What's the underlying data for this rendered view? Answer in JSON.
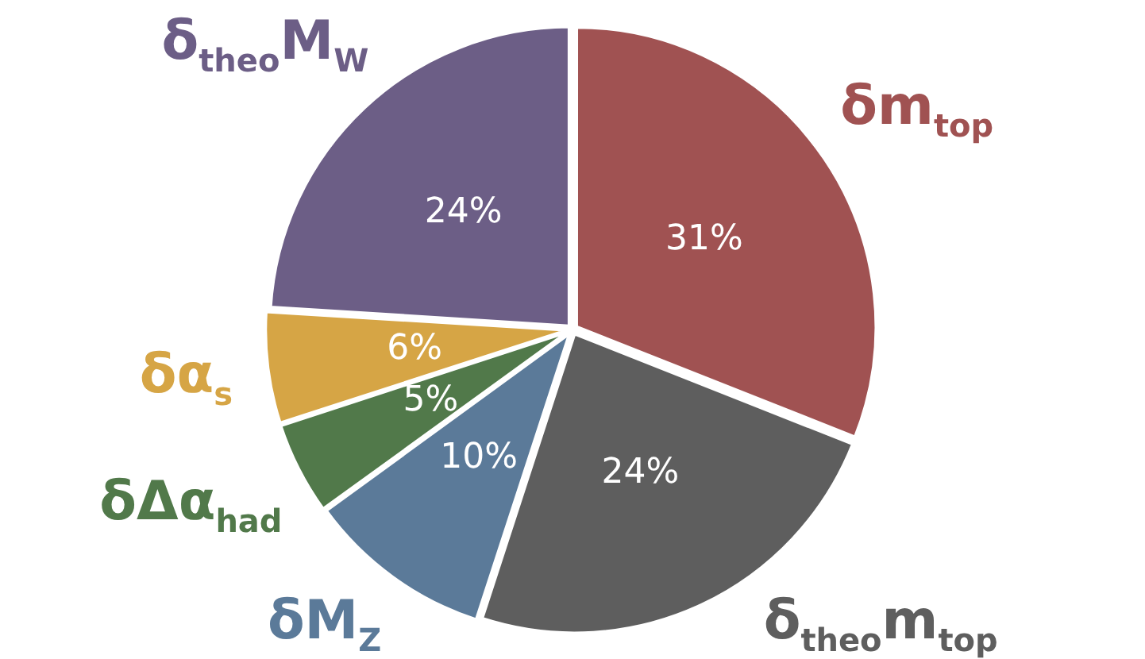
{
  "chart_data": {
    "type": "pie",
    "categories": [
      "δm$_{top}$",
      "δ$_{theo}$m$_{top}$",
      "δM$_{Z}$",
      "δΔα$_{had}$",
      "δα$_{s}$",
      "δ$_{theo}$M$_{W}$"
    ],
    "values": [
      31,
      24,
      10,
      5,
      6,
      24
    ],
    "colors": [
      "#a05252",
      "#5e5e5e",
      "#5b7a99",
      "#51794a",
      "#d6a545",
      "#6c5e86"
    ],
    "value_labels": [
      "31%",
      "24%",
      "10%",
      "5%",
      "6%",
      "24%"
    ],
    "legend": false
  }
}
